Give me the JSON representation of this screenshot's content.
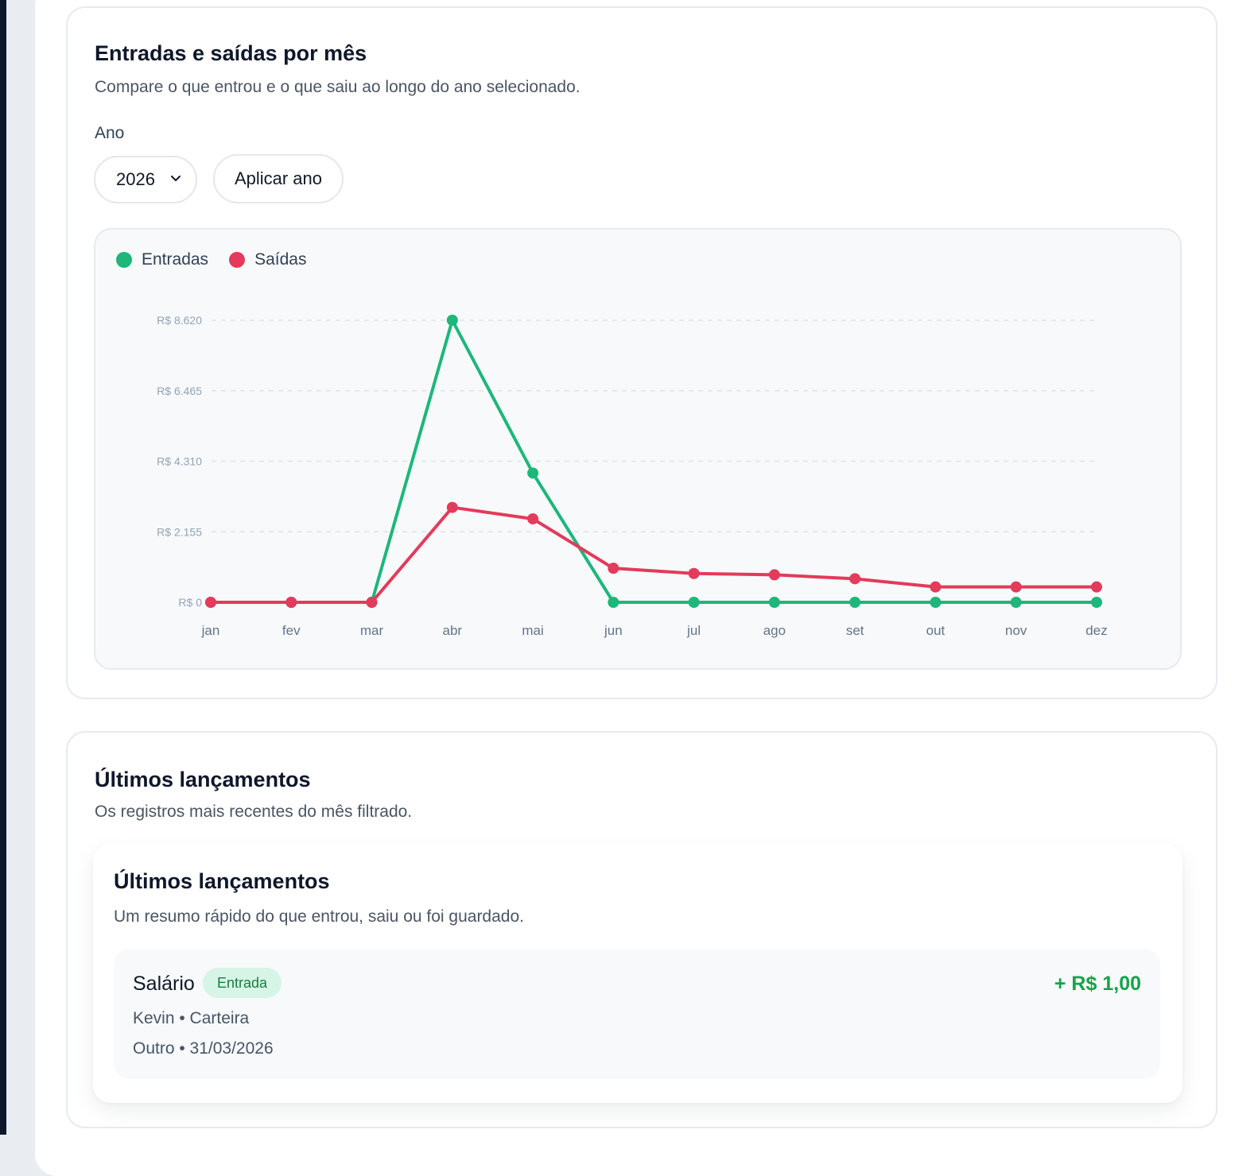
{
  "chart_section": {
    "title": "Entradas e saídas por mês",
    "subtitle": "Compare o que entrou e o que saiu ao longo do ano selecionado.",
    "year_label": "Ano",
    "year_value": "2026",
    "apply_label": "Aplicar ano"
  },
  "colors": {
    "entradas": "#1db77a",
    "saidas": "#e23b5b"
  },
  "chart_data": {
    "type": "line",
    "categories": [
      "jan",
      "fev",
      "mar",
      "abr",
      "mai",
      "jun",
      "jul",
      "ago",
      "set",
      "out",
      "nov",
      "dez"
    ],
    "yticks": [
      "R$ 0",
      "R$ 2.155",
      "R$ 4.310",
      "R$ 6.465",
      "R$ 8.620"
    ],
    "ylim": [
      0,
      8620
    ],
    "grid": true,
    "legend": "top-left",
    "series": [
      {
        "name": "Entradas",
        "values": [
          0,
          0,
          0,
          8620,
          3950,
          0,
          0,
          0,
          0,
          0,
          0,
          0
        ]
      },
      {
        "name": "Saídas",
        "values": [
          0,
          0,
          0,
          2900,
          2550,
          1040,
          880,
          840,
          720,
          470,
          470,
          470
        ]
      }
    ]
  },
  "recent_section": {
    "title": "Últimos lançamentos",
    "subtitle": "Os registros mais recentes do mês filtrado.",
    "inner_title": "Últimos lançamentos",
    "inner_subtitle": "Um resumo rápido do que entrou, saiu ou foi guardado.",
    "entries": [
      {
        "name": "Salário",
        "badge": "Entrada",
        "line1": "Kevin • Carteira",
        "line2": "Outro • 31/03/2026",
        "amount": "+ R$ 1,00"
      }
    ]
  }
}
